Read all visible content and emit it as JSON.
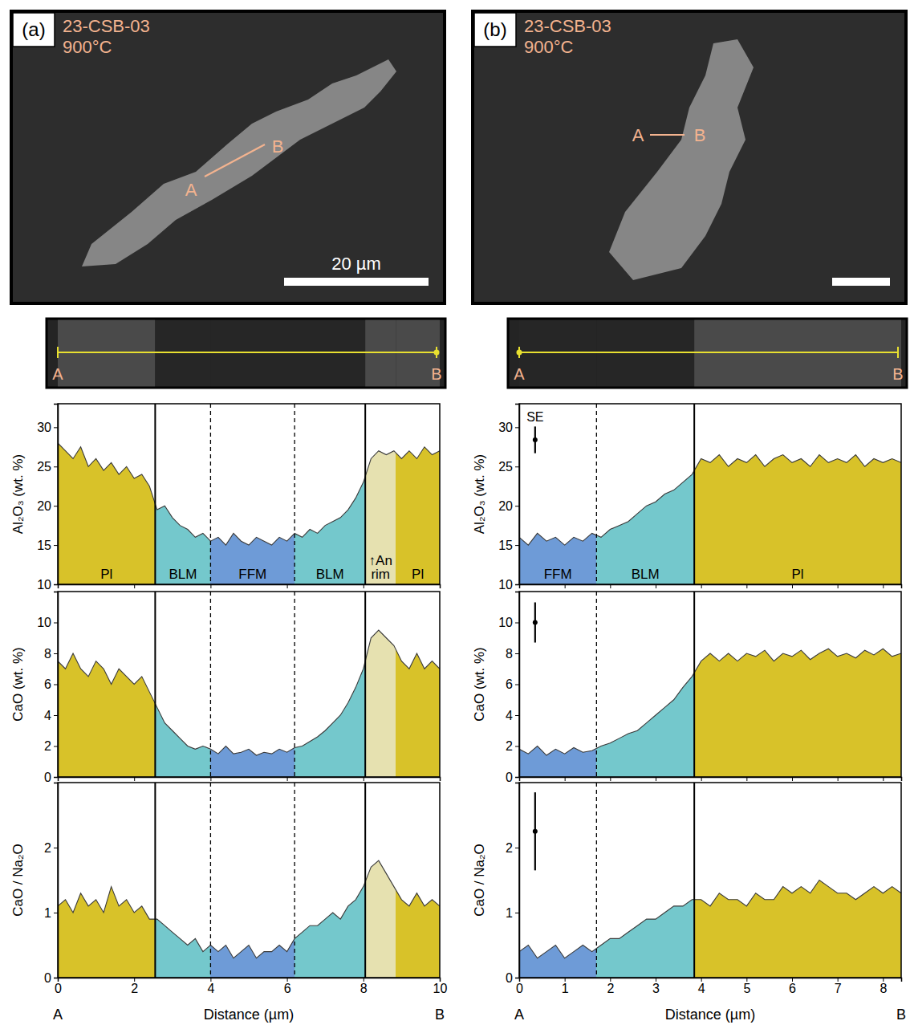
{
  "panels": [
    {
      "label": "(a)",
      "sample": "23-CSB-03",
      "temperature": "900°C",
      "line_start": "A",
      "line_end": "B",
      "scale_bar": "20 µm",
      "strip_start": "A",
      "strip_end": "B"
    },
    {
      "label": "(b)",
      "sample": "23-CSB-03",
      "temperature": "900°C",
      "line_start": "A",
      "line_end": "B",
      "strip_start": "A",
      "strip_end": "B"
    }
  ],
  "chart_data": [
    {
      "type": "area",
      "ylabel": "Al₂O₃ (wt. %)",
      "tick_labels": "y",
      "xlim": [
        0,
        10
      ],
      "xticks": [
        0,
        2,
        4,
        6,
        8,
        10
      ],
      "ylim": [
        10,
        33
      ],
      "yticks": [
        10,
        15,
        20,
        25,
        30
      ],
      "x": [
        0,
        0.2,
        0.4,
        0.6,
        0.8,
        1,
        1.2,
        1.4,
        1.6,
        1.8,
        2,
        2.2,
        2.4,
        2.6,
        2.8,
        3,
        3.2,
        3.4,
        3.6,
        3.8,
        4,
        4.2,
        4.4,
        4.6,
        4.8,
        5,
        5.2,
        5.4,
        5.6,
        5.8,
        6,
        6.2,
        6.4,
        6.6,
        6.8,
        7,
        7.2,
        7.4,
        7.6,
        7.8,
        8,
        8.2,
        8.4,
        8.6,
        8.8,
        9,
        9.2,
        9.4,
        9.6,
        9.8,
        10
      ],
      "series": [
        {
          "color": "#3a3a3a",
          "values": [
            28,
            27,
            26,
            27.5,
            25,
            26,
            24.5,
            25.5,
            24,
            25,
            23.5,
            24,
            22.5,
            19.5,
            20,
            18.5,
            17.5,
            17,
            16,
            16.5,
            15.5,
            16,
            15,
            16.5,
            15.5,
            15,
            16,
            15.5,
            15,
            16,
            15.5,
            16.5,
            16,
            17,
            16.5,
            17.5,
            18,
            18.5,
            19.5,
            21,
            23,
            26,
            27,
            26.5,
            27,
            26,
            27,
            26,
            27.5,
            26.5,
            27
          ]
        }
      ],
      "regions": [
        {
          "label": "Pl",
          "from": 0,
          "to": 2.55,
          "color": "#d8c229"
        },
        {
          "label": "BLM",
          "from": 2.55,
          "to": 4.0,
          "color": "#74c8cc"
        },
        {
          "label": "FFM",
          "from": 4.0,
          "to": 6.2,
          "color": "#6e9bd7"
        },
        {
          "label": "BLM",
          "from": 6.2,
          "to": 8.05,
          "color": "#74c8cc"
        },
        {
          "label": "↑An rim",
          "from": 8.05,
          "to": 8.85,
          "color": "#e6e1b0"
        },
        {
          "label": "Pl",
          "from": 8.85,
          "to": 10,
          "color": "#d8c229"
        }
      ],
      "boundaries": [
        {
          "value": 2.55,
          "line_style": "solid"
        },
        {
          "value": 4.0,
          "line_style": "dashed"
        },
        {
          "value": 6.2,
          "line_style": "dashed"
        },
        {
          "value": 8.05,
          "line_style": "solid"
        }
      ]
    },
    {
      "type": "area",
      "ylabel": "CaO (wt. %)",
      "tick_labels": "y",
      "xlim": [
        0,
        10
      ],
      "xticks": [
        0,
        2,
        4,
        6,
        8,
        10
      ],
      "ylim": [
        0,
        12
      ],
      "yticks": [
        0,
        2,
        4,
        6,
        8,
        10
      ],
      "x": [
        0,
        0.2,
        0.4,
        0.6,
        0.8,
        1,
        1.2,
        1.4,
        1.6,
        1.8,
        2,
        2.2,
        2.4,
        2.6,
        2.8,
        3,
        3.2,
        3.4,
        3.6,
        3.8,
        4,
        4.2,
        4.4,
        4.6,
        4.8,
        5,
        5.2,
        5.4,
        5.6,
        5.8,
        6,
        6.2,
        6.4,
        6.6,
        6.8,
        7,
        7.2,
        7.4,
        7.6,
        7.8,
        8,
        8.2,
        8.4,
        8.6,
        8.8,
        9,
        9.2,
        9.4,
        9.6,
        9.8,
        10
      ],
      "series": [
        {
          "color": "#3a3a3a",
          "values": [
            7.5,
            7,
            8,
            7,
            6.5,
            7.5,
            7,
            6,
            7,
            6.5,
            6,
            6.5,
            5.5,
            4.5,
            3.5,
            3,
            2.5,
            2,
            1.8,
            2,
            1.8,
            1.5,
            2,
            1.5,
            1.6,
            1.8,
            1.4,
            1.6,
            1.5,
            1.8,
            1.6,
            1.9,
            2,
            2.3,
            2.6,
            3,
            3.5,
            4,
            4.8,
            5.8,
            7,
            9,
            9.5,
            9,
            8.5,
            7.5,
            7,
            8,
            7,
            7.5,
            7
          ]
        }
      ],
      "regions": [
        {
          "from": 0,
          "to": 2.55,
          "color": "#d8c229"
        },
        {
          "from": 2.55,
          "to": 4.0,
          "color": "#74c8cc"
        },
        {
          "from": 4.0,
          "to": 6.2,
          "color": "#6e9bd7"
        },
        {
          "from": 6.2,
          "to": 8.05,
          "color": "#74c8cc"
        },
        {
          "from": 8.05,
          "to": 8.85,
          "color": "#e6e1b0"
        },
        {
          "from": 8.85,
          "to": 10,
          "color": "#d8c229"
        }
      ],
      "boundaries": [
        {
          "value": 2.55,
          "line_style": "solid"
        },
        {
          "value": 4.0,
          "line_style": "dashed"
        },
        {
          "value": 6.2,
          "line_style": "dashed"
        },
        {
          "value": 8.05,
          "line_style": "solid"
        }
      ]
    },
    {
      "type": "area",
      "ylabel": "CaO / Na₂O",
      "xlabel": "Distance (µm)",
      "endpoints": [
        "A",
        "B"
      ],
      "xlim": [
        0,
        10
      ],
      "xticks": [
        0,
        2,
        4,
        6,
        8,
        10
      ],
      "ylim": [
        0,
        3
      ],
      "yticks": [
        0,
        1,
        2
      ],
      "x": [
        0,
        0.2,
        0.4,
        0.6,
        0.8,
        1,
        1.2,
        1.4,
        1.6,
        1.8,
        2,
        2.2,
        2.4,
        2.6,
        2.8,
        3,
        3.2,
        3.4,
        3.6,
        3.8,
        4,
        4.2,
        4.4,
        4.6,
        4.8,
        5,
        5.2,
        5.4,
        5.6,
        5.8,
        6,
        6.2,
        6.4,
        6.6,
        6.8,
        7,
        7.2,
        7.4,
        7.6,
        7.8,
        8,
        8.2,
        8.4,
        8.6,
        8.8,
        9,
        9.2,
        9.4,
        9.6,
        9.8,
        10
      ],
      "series": [
        {
          "color": "#3a3a3a",
          "values": [
            1.1,
            1.2,
            1,
            1.3,
            1.1,
            1.2,
            1,
            1.4,
            1.1,
            1.2,
            1,
            1.1,
            0.9,
            0.9,
            0.8,
            0.7,
            0.6,
            0.5,
            0.6,
            0.4,
            0.5,
            0.4,
            0.5,
            0.3,
            0.4,
            0.5,
            0.3,
            0.4,
            0.4,
            0.5,
            0.4,
            0.6,
            0.7,
            0.8,
            0.8,
            0.9,
            1,
            0.9,
            1.1,
            1.2,
            1.4,
            1.7,
            1.8,
            1.6,
            1.4,
            1.2,
            1.1,
            1.3,
            1.1,
            1.2,
            1.1
          ]
        }
      ],
      "regions": [
        {
          "from": 0,
          "to": 2.55,
          "color": "#d8c229"
        },
        {
          "from": 2.55,
          "to": 4.0,
          "color": "#74c8cc"
        },
        {
          "from": 4.0,
          "to": 6.2,
          "color": "#6e9bd7"
        },
        {
          "from": 6.2,
          "to": 8.05,
          "color": "#74c8cc"
        },
        {
          "from": 8.05,
          "to": 8.85,
          "color": "#e6e1b0"
        },
        {
          "from": 8.85,
          "to": 10,
          "color": "#d8c229"
        }
      ],
      "boundaries": [
        {
          "value": 2.55,
          "line_style": "solid"
        },
        {
          "value": 4.0,
          "line_style": "dashed"
        },
        {
          "value": 6.2,
          "line_style": "dashed"
        },
        {
          "value": 8.05,
          "line_style": "solid"
        }
      ]
    },
    {
      "type": "area",
      "ylabel": "Al₂O₃ (wt. %)",
      "tick_labels": "y",
      "xlim": [
        0,
        8.4
      ],
      "xticks": [
        0,
        1,
        2,
        3,
        4,
        5,
        6,
        7,
        8
      ],
      "ylim": [
        10,
        33
      ],
      "yticks": [
        10,
        15,
        20,
        25,
        30
      ],
      "x": [
        0,
        0.2,
        0.4,
        0.6,
        0.8,
        1,
        1.2,
        1.4,
        1.6,
        1.8,
        2,
        2.2,
        2.4,
        2.6,
        2.8,
        3,
        3.2,
        3.4,
        3.6,
        3.8,
        4,
        4.2,
        4.4,
        4.6,
        4.8,
        5,
        5.2,
        5.4,
        5.6,
        5.8,
        6,
        6.2,
        6.4,
        6.6,
        6.8,
        7,
        7.2,
        7.4,
        7.6,
        7.8,
        8,
        8.2,
        8.4
      ],
      "series": [
        {
          "color": "#3a3a3a",
          "values": [
            16,
            15,
            16.5,
            15.5,
            16,
            15,
            16,
            15.5,
            16.5,
            16,
            17,
            17.5,
            18,
            19,
            20,
            20.5,
            21.5,
            22,
            23,
            24,
            26,
            25.5,
            26.5,
            25,
            26,
            25.5,
            26.5,
            25,
            26,
            26.5,
            25.5,
            26,
            25,
            26.5,
            25.5,
            26,
            25.5,
            26.5,
            25,
            26,
            25.5,
            26,
            25.5
          ]
        }
      ],
      "regions": [
        {
          "label": "FFM",
          "from": 0,
          "to": 1.7,
          "color": "#6e9bd7"
        },
        {
          "label": "BLM",
          "from": 1.7,
          "to": 3.85,
          "color": "#74c8cc"
        },
        {
          "label": "Pl",
          "from": 3.85,
          "to": 8.4,
          "color": "#d8c229"
        }
      ],
      "boundaries": [
        {
          "value": 1.7,
          "line_style": "dashed"
        },
        {
          "value": 3.85,
          "line_style": "solid"
        }
      ],
      "error_bar": {
        "label": "SE",
        "x": 0.35,
        "value": 28.4,
        "error": 1.7
      }
    },
    {
      "type": "area",
      "ylabel": "CaO (wt. %)",
      "tick_labels": "y",
      "xlim": [
        0,
        8.4
      ],
      "xticks": [
        0,
        1,
        2,
        3,
        4,
        5,
        6,
        7,
        8
      ],
      "ylim": [
        0,
        12
      ],
      "yticks": [
        0,
        2,
        4,
        6,
        8,
        10
      ],
      "x": [
        0,
        0.2,
        0.4,
        0.6,
        0.8,
        1,
        1.2,
        1.4,
        1.6,
        1.8,
        2,
        2.2,
        2.4,
        2.6,
        2.8,
        3,
        3.2,
        3.4,
        3.6,
        3.8,
        4,
        4.2,
        4.4,
        4.6,
        4.8,
        5,
        5.2,
        5.4,
        5.6,
        5.8,
        6,
        6.2,
        6.4,
        6.6,
        6.8,
        7,
        7.2,
        7.4,
        7.6,
        7.8,
        8,
        8.2,
        8.4
      ],
      "series": [
        {
          "color": "#3a3a3a",
          "values": [
            1.8,
            1.5,
            2,
            1.4,
            1.8,
            1.5,
            1.9,
            1.6,
            1.7,
            2,
            2.2,
            2.5,
            2.8,
            3,
            3.5,
            4,
            4.5,
            5,
            5.8,
            6.5,
            7.5,
            8,
            7.5,
            8,
            7.5,
            8,
            7.8,
            8.2,
            7.5,
            8,
            7.8,
            8.2,
            7.6,
            8,
            8.3,
            7.8,
            8,
            7.7,
            8.2,
            7.9,
            8.3,
            7.8,
            8
          ]
        }
      ],
      "regions": [
        {
          "from": 0,
          "to": 1.7,
          "color": "#6e9bd7"
        },
        {
          "from": 1.7,
          "to": 3.85,
          "color": "#74c8cc"
        },
        {
          "from": 3.85,
          "to": 8.4,
          "color": "#d8c229"
        }
      ],
      "boundaries": [
        {
          "value": 1.7,
          "line_style": "dashed"
        },
        {
          "value": 3.85,
          "line_style": "solid"
        }
      ],
      "error_bar": {
        "x": 0.35,
        "value": 10,
        "error": 1.3
      }
    },
    {
      "type": "area",
      "ylabel": "CaO / Na₂O",
      "xlabel": "Distance (µm)",
      "endpoints": [
        "A",
        "B"
      ],
      "xlim": [
        0,
        8.4
      ],
      "xticks": [
        0,
        1,
        2,
        3,
        4,
        5,
        6,
        7,
        8
      ],
      "ylim": [
        0,
        3
      ],
      "yticks": [
        0,
        1,
        2
      ],
      "x": [
        0,
        0.2,
        0.4,
        0.6,
        0.8,
        1,
        1.2,
        1.4,
        1.6,
        1.8,
        2,
        2.2,
        2.4,
        2.6,
        2.8,
        3,
        3.2,
        3.4,
        3.6,
        3.8,
        4,
        4.2,
        4.4,
        4.6,
        4.8,
        5,
        5.2,
        5.4,
        5.6,
        5.8,
        6,
        6.2,
        6.4,
        6.6,
        6.8,
        7,
        7.2,
        7.4,
        7.6,
        7.8,
        8,
        8.2,
        8.4
      ],
      "series": [
        {
          "color": "#3a3a3a",
          "values": [
            0.4,
            0.5,
            0.3,
            0.4,
            0.5,
            0.3,
            0.4,
            0.5,
            0.4,
            0.5,
            0.6,
            0.6,
            0.7,
            0.8,
            0.9,
            0.9,
            1,
            1.1,
            1.1,
            1.2,
            1.2,
            1.1,
            1.3,
            1.2,
            1.2,
            1.1,
            1.3,
            1.2,
            1.2,
            1.4,
            1.3,
            1.4,
            1.3,
            1.5,
            1.4,
            1.3,
            1.3,
            1.2,
            1.3,
            1.4,
            1.3,
            1.4,
            1.3
          ]
        }
      ],
      "regions": [
        {
          "from": 0,
          "to": 1.7,
          "color": "#6e9bd7"
        },
        {
          "from": 1.7,
          "to": 3.85,
          "color": "#74c8cc"
        },
        {
          "from": 3.85,
          "to": 8.4,
          "color": "#d8c229"
        }
      ],
      "boundaries": [
        {
          "value": 1.7,
          "line_style": "dashed"
        },
        {
          "value": 3.85,
          "line_style": "solid"
        }
      ],
      "error_bar": {
        "x": 0.35,
        "value": 2.25,
        "error": 0.6
      }
    }
  ]
}
